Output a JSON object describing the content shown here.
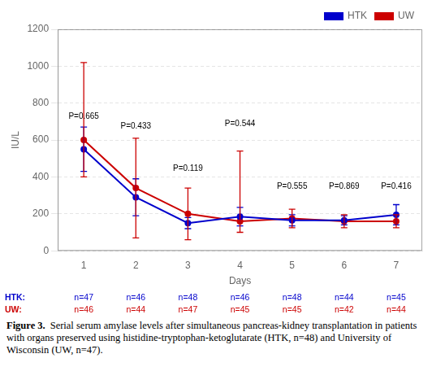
{
  "chart_data": {
    "type": "line",
    "x": [
      1,
      2,
      3,
      4,
      5,
      6,
      7
    ],
    "series": [
      {
        "name": "HTK",
        "color": "#0000cc",
        "values": [
          550,
          290,
          150,
          185,
          165,
          165,
          195
        ],
        "err_low": [
          120,
          100,
          30,
          50,
          30,
          25,
          55
        ],
        "err_high": [
          120,
          100,
          30,
          50,
          30,
          25,
          55
        ],
        "n_label": "HTK:",
        "n_labels": [
          "n=47",
          "n=46",
          "n=48",
          "n=46",
          "n=48",
          "n=44",
          "n=45"
        ]
      },
      {
        "name": "UW",
        "color": "#cc0000",
        "values": [
          600,
          340,
          200,
          160,
          175,
          160,
          160
        ],
        "err_low": [
          200,
          270,
          140,
          60,
          50,
          35,
          35
        ],
        "err_high": [
          420,
          270,
          140,
          380,
          50,
          35,
          35
        ],
        "n_label": "UW:",
        "n_labels": [
          "n=46",
          "n=44",
          "n=47",
          "n=45",
          "n=45",
          "n=42",
          "n=44"
        ]
      }
    ],
    "xlabel": "Days",
    "ylabel": "IU/L",
    "xlim": [
      0.5,
      7.5
    ],
    "xticks": [
      1,
      2,
      3,
      4,
      5,
      6,
      7
    ],
    "ylim": [
      0,
      1200
    ],
    "yticks": [
      0,
      200,
      400,
      600,
      800,
      1000,
      1200
    ],
    "grid": "y",
    "legend": "upper right",
    "annotations": [
      {
        "text": "P=0.665",
        "x": 1,
        "y": 700
      },
      {
        "text": "P=0.433",
        "x": 2,
        "y": 650
      },
      {
        "text": "P=0.119",
        "x": 3,
        "y": 420
      },
      {
        "text": "P=0.544",
        "x": 4,
        "y": 660
      },
      {
        "text": "P=0.555",
        "x": 5,
        "y": 320
      },
      {
        "text": "P=0.869",
        "x": 6,
        "y": 320
      },
      {
        "text": "P=0.416",
        "x": 7,
        "y": 320
      }
    ],
    "caption_bold": "Figure 3.",
    "caption": "Serial serum amylase levels after simultaneous pancreas-kidney transplantation in patients with organs preserved using histidine-tryptophan-ketoglutarate (HTK, n=48) and University of Wisconsin (UW, n=47)."
  }
}
